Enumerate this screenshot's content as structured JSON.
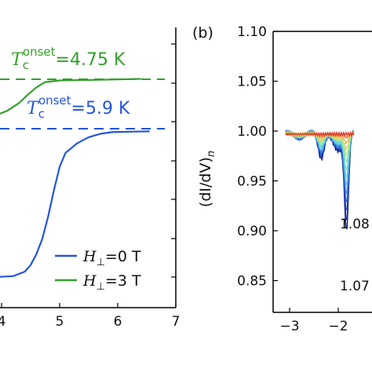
{
  "chart_data": [
    {
      "type": "line",
      "title": "",
      "xlabel": "",
      "ylabel": "",
      "xlim": [
        3.9,
        7
      ],
      "x_ticks": [
        "4",
        "5",
        "6",
        "7"
      ],
      "legend": {
        "placement": "lower-right",
        "entries": [
          {
            "label_main": "H",
            "label_sub": "⊥",
            "label_rest": "=0 T",
            "color": "#2255dd"
          },
          {
            "label_main": "H",
            "label_sub": "⊥",
            "label_rest": "=3 T",
            "color": "#33a02c"
          }
        ]
      },
      "annotations": [
        {
          "main": "T",
          "sub": "c",
          "sup": "onset",
          "rest": "=4.75 K",
          "color": "#33a02c"
        },
        {
          "main": "T",
          "sub": "c",
          "sup": "onset",
          "rest": "=5.9 K",
          "color": "#2255dd"
        }
      ],
      "series": [
        {
          "color": "#2255dd",
          "x": [
            3.9,
            4.2,
            4.4,
            4.5,
            4.6,
            4.7,
            4.8,
            4.9,
            5.0,
            5.1,
            5.3,
            5.5,
            5.7,
            5.9,
            6.2,
            6.55
          ],
          "y": [
            0.02,
            0.03,
            0.06,
            0.1,
            0.17,
            0.27,
            0.42,
            0.6,
            0.76,
            0.85,
            0.91,
            0.95,
            0.975,
            0.99,
            0.995,
            0.995
          ]
        },
        {
          "color": "#33a02c",
          "x": [
            3.9,
            4.1,
            4.3,
            4.45,
            4.6,
            4.75,
            5.0,
            5.3,
            5.6,
            6.0,
            6.4
          ],
          "y": [
            0.58,
            0.64,
            0.73,
            0.82,
            0.9,
            0.96,
            0.985,
            0.995,
            1.0,
            1.0,
            1.0
          ]
        }
      ],
      "reference_lines": [
        {
          "style": "dashed",
          "color": "#33a02c",
          "level": 1.0
        },
        {
          "style": "dashed",
          "color": "#2255dd",
          "level": 0.5
        }
      ]
    },
    {
      "type": "line",
      "panel_label": "(b)",
      "title": "",
      "ylabel_text": "(dI/dV)",
      "ylabel_sub": "n",
      "xlim": [
        -3.25,
        -1.75
      ],
      "ylim": [
        0.825,
        1.1
      ],
      "x_ticks": [
        -3,
        -2
      ],
      "x_tick_labels": [
        "−3",
        "−2"
      ],
      "y_ticks": [
        0.85,
        0.9,
        0.95,
        1.0,
        1.05,
        1.1
      ],
      "y_tick_labels": [
        "0.85",
        "0.90",
        "0.95",
        "1.00",
        "1.05",
        "1.10"
      ],
      "inline_labels": [
        "1.08",
        "1.07"
      ],
      "curve_colors": [
        "#0b1a80",
        "#132ea0",
        "#1d45c0",
        "#2b66d6",
        "#3f8ae0",
        "#55b0e8",
        "#62cfe0",
        "#6fdccc",
        "#8fe3a8",
        "#b5e38a",
        "#d8d870",
        "#e8b84e",
        "#e8843a",
        "#dd3a2a"
      ]
    }
  ]
}
